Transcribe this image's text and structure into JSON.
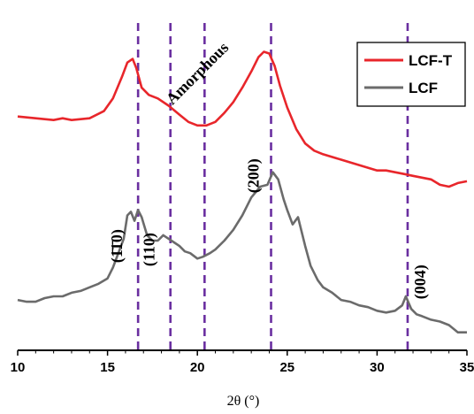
{
  "chart_data": {
    "type": "line",
    "xlabel": "2θ (°)",
    "ylabel": "",
    "xlim": [
      10,
      35
    ],
    "x_ticks": [
      10,
      15,
      20,
      25,
      30,
      35
    ],
    "y_axis_shown": false,
    "grid": false,
    "legend_position": "top-right",
    "series": [
      {
        "name": "LCF-T",
        "color": "#e8262b",
        "x": [
          10,
          11,
          12,
          12.5,
          13,
          14,
          14.8,
          15.3,
          15.8,
          16.1,
          16.4,
          16.6,
          16.9,
          17.3,
          17.8,
          18.4,
          19.0,
          19.5,
          20.0,
          20.5,
          21.0,
          21.5,
          22.0,
          22.5,
          23.0,
          23.4,
          23.7,
          24.0,
          24.3,
          24.6,
          25.0,
          25.5,
          26.0,
          26.5,
          27.0,
          28.0,
          29.0,
          30.0,
          30.5,
          31.0,
          31.5,
          32.0,
          32.5,
          33.0,
          33.5,
          34.0,
          34.5,
          35.0
        ],
        "y": [
          0.5,
          0.49,
          0.48,
          0.49,
          0.48,
          0.49,
          0.53,
          0.6,
          0.72,
          0.8,
          0.82,
          0.77,
          0.66,
          0.62,
          0.6,
          0.56,
          0.51,
          0.47,
          0.45,
          0.45,
          0.47,
          0.52,
          0.58,
          0.66,
          0.75,
          0.83,
          0.86,
          0.85,
          0.78,
          0.67,
          0.55,
          0.43,
          0.35,
          0.31,
          0.29,
          0.26,
          0.23,
          0.2,
          0.2,
          0.19,
          0.18,
          0.17,
          0.16,
          0.15,
          0.12,
          0.11,
          0.13,
          0.14
        ]
      },
      {
        "name": "LCF",
        "color": "#6b6b6b",
        "x": [
          10,
          10.5,
          11,
          11.5,
          12,
          12.5,
          13,
          13.5,
          14,
          14.5,
          15,
          15.3,
          15.6,
          15.9,
          16.1,
          16.3,
          16.5,
          16.7,
          16.9,
          17.2,
          17.5,
          17.8,
          18.1,
          18.4,
          18.7,
          19.0,
          19.3,
          19.6,
          20.0,
          20.3,
          20.7,
          21.0,
          21.5,
          22.0,
          22.5,
          23.0,
          23.5,
          23.9,
          24.2,
          24.5,
          24.8,
          25.0,
          25.3,
          25.6,
          26.0,
          26.3,
          26.7,
          27.0,
          27.5,
          28.0,
          28.5,
          29.0,
          29.5,
          30.0,
          30.5,
          31.0,
          31.4,
          31.6,
          31.9,
          32.2,
          32.5,
          33.0,
          33.5,
          34.0,
          34.5,
          35.0
        ],
        "y": [
          -0.52,
          -0.53,
          -0.53,
          -0.51,
          -0.5,
          -0.5,
          -0.48,
          -0.47,
          -0.45,
          -0.43,
          -0.4,
          -0.34,
          -0.26,
          -0.18,
          -0.05,
          -0.03,
          -0.08,
          -0.02,
          -0.06,
          -0.16,
          -0.19,
          -0.19,
          -0.16,
          -0.18,
          -0.2,
          -0.22,
          -0.25,
          -0.26,
          -0.29,
          -0.28,
          -0.26,
          -0.24,
          -0.19,
          -0.13,
          -0.05,
          0.05,
          0.11,
          0.12,
          0.19,
          0.15,
          0.04,
          -0.02,
          -0.1,
          -0.06,
          -0.22,
          -0.33,
          -0.41,
          -0.45,
          -0.48,
          -0.52,
          -0.53,
          -0.55,
          -0.56,
          -0.58,
          -0.59,
          -0.58,
          -0.55,
          -0.5,
          -0.57,
          -0.6,
          -0.61,
          -0.63,
          -0.64,
          -0.66,
          -0.7,
          -0.7
        ]
      }
    ],
    "reference_lines": [
      {
        "x": 16.7,
        "color": "#6a2fa0"
      },
      {
        "x": 18.5,
        "color": "#6a2fa0"
      },
      {
        "x": 20.4,
        "color": "#6a2fa0"
      },
      {
        "x": 24.1,
        "color": "#6a2fa0"
      },
      {
        "x": 31.7,
        "color": "#6a2fa0"
      }
    ],
    "annotations": [
      {
        "text": "(1̄1̄0)",
        "x": 15.8,
        "y": -0.22,
        "rotation": -90
      },
      {
        "text": "(110)",
        "x": 17.6,
        "y": -0.24,
        "rotation": -90
      },
      {
        "text": "Amorphous",
        "x": 20.2,
        "y": 0.72,
        "rotation": -45
      },
      {
        "text": "(200)",
        "x": 23.4,
        "y": 0.17,
        "rotation": -90
      },
      {
        "text": "(004)",
        "x": 32.7,
        "y": -0.42,
        "rotation": -90
      }
    ]
  }
}
